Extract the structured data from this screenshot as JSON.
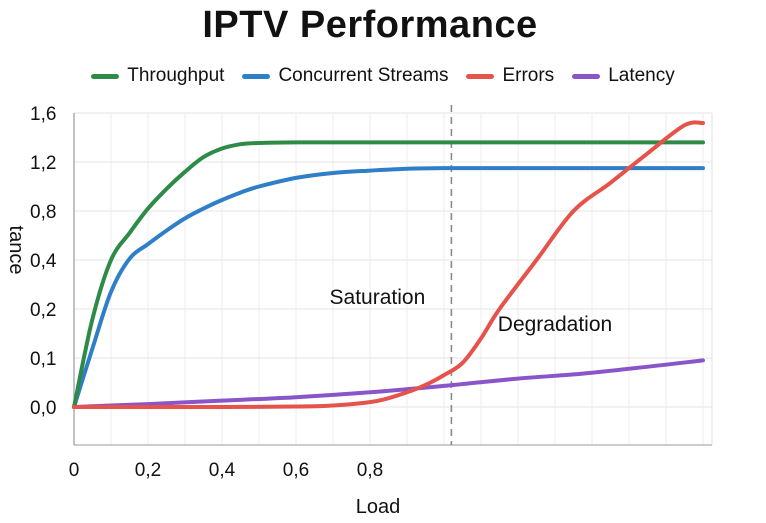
{
  "chart_data": {
    "type": "line",
    "title": "IPTV Performance",
    "xlabel": "Load",
    "ylabel": "tance",
    "x_ticks": [
      "0",
      "0,2",
      "0,4",
      "0,6",
      "0,8"
    ],
    "y_ticks": [
      "0,0",
      "0,1",
      "0,2",
      "0,4",
      "0,8",
      "1,2",
      "1,6"
    ],
    "grid": true,
    "legend_position": "top",
    "series": [
      {
        "name": "Throughput",
        "color": "#2e8b47",
        "points": [
          [
            0,
            0
          ],
          [
            0.05,
            0.18
          ],
          [
            0.1,
            0.4
          ],
          [
            0.15,
            0.62
          ],
          [
            0.2,
            0.82
          ],
          [
            0.25,
            0.98
          ],
          [
            0.3,
            1.12
          ],
          [
            0.35,
            1.24
          ],
          [
            0.4,
            1.31
          ],
          [
            0.45,
            1.345
          ],
          [
            0.5,
            1.355
          ],
          [
            0.6,
            1.36
          ],
          [
            0.8,
            1.36
          ],
          [
            1.0,
            1.36
          ],
          [
            1.2,
            1.36
          ],
          [
            1.3,
            1.36
          ],
          [
            1.7,
            1.36
          ]
        ]
      },
      {
        "name": "Concurrent Streams",
        "color": "#2f7fc8",
        "points": [
          [
            0,
            0
          ],
          [
            0.05,
            0.12
          ],
          [
            0.1,
            0.27
          ],
          [
            0.15,
            0.41
          ],
          [
            0.2,
            0.53
          ],
          [
            0.25,
            0.64
          ],
          [
            0.3,
            0.74
          ],
          [
            0.35,
            0.82
          ],
          [
            0.4,
            0.89
          ],
          [
            0.45,
            0.95
          ],
          [
            0.5,
            1.0
          ],
          [
            0.6,
            1.07
          ],
          [
            0.7,
            1.11
          ],
          [
            0.8,
            1.13
          ],
          [
            0.9,
            1.145
          ],
          [
            1.0,
            1.15
          ],
          [
            1.2,
            1.15
          ],
          [
            1.7,
            1.15
          ]
        ]
      },
      {
        "name": "Errors",
        "color": "#e5534b",
        "points": [
          [
            0,
            0
          ],
          [
            0.2,
            0
          ],
          [
            0.4,
            0
          ],
          [
            0.6,
            0.001
          ],
          [
            0.7,
            0.003
          ],
          [
            0.8,
            0.01
          ],
          [
            0.85,
            0.018
          ],
          [
            0.9,
            0.03
          ],
          [
            0.95,
            0.045
          ],
          [
            1.0,
            0.065
          ],
          [
            1.05,
            0.09
          ],
          [
            1.1,
            0.14
          ],
          [
            1.15,
            0.2
          ],
          [
            1.25,
            0.4
          ],
          [
            1.35,
            0.8
          ],
          [
            1.45,
            1.03
          ],
          [
            1.55,
            1.27
          ],
          [
            1.65,
            1.5
          ],
          [
            1.7,
            1.63
          ]
        ]
      },
      {
        "name": "Latency",
        "color": "#8a55c8",
        "points": [
          [
            0,
            0
          ],
          [
            0.2,
            0.006
          ],
          [
            0.4,
            0.013
          ],
          [
            0.6,
            0.02
          ],
          [
            0.8,
            0.03
          ],
          [
            1.0,
            0.043
          ],
          [
            1.2,
            0.058
          ],
          [
            1.4,
            0.07
          ],
          [
            1.7,
            0.095
          ]
        ]
      }
    ],
    "vertical_marker_x": 1.02,
    "annotations": [
      {
        "text": "Saturation",
        "x": 0.82,
        "y": 0.22
      },
      {
        "text": "Degradation",
        "x": 1.3,
        "y": 0.155
      }
    ]
  }
}
